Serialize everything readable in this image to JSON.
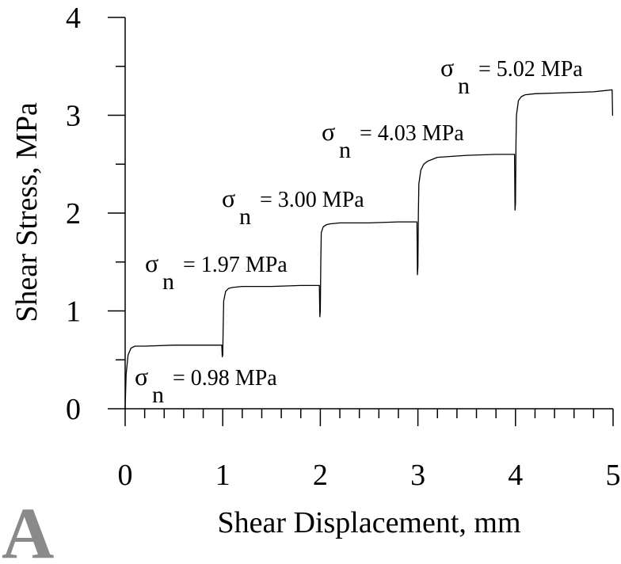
{
  "chart_data": {
    "type": "line",
    "xlabel": "Shear Displacement, mm",
    "ylabel": "Shear Stress, MPa",
    "xlim": [
      0,
      5
    ],
    "ylim": [
      0,
      4
    ],
    "x_ticks": [
      "0",
      "1",
      "2",
      "3",
      "4",
      "5"
    ],
    "y_ticks": [
      "0",
      "1",
      "2",
      "3",
      "4"
    ],
    "grid": false,
    "panel_label": "A",
    "series": [
      {
        "x": [
          0,
          0.01,
          0.03,
          0.06,
          0.1,
          0.2,
          0.5,
          0.8,
          0.99,
          0.995,
          1.0,
          1.005,
          1.01,
          1.03,
          1.06,
          1.1,
          1.2,
          1.5,
          1.8,
          1.99,
          1.995,
          2.0,
          2.005,
          2.01,
          2.03,
          2.06,
          2.1,
          2.2,
          2.5,
          2.8,
          2.99,
          2.995,
          3.0,
          3.005,
          3.01,
          3.03,
          3.06,
          3.1,
          3.2,
          3.5,
          3.8,
          3.99,
          3.995,
          4.0,
          4.005,
          4.01,
          4.03,
          4.06,
          4.1,
          4.2,
          4.5,
          4.8,
          4.99,
          4.995,
          5.0
        ],
        "y": [
          0,
          0.35,
          0.55,
          0.62,
          0.64,
          0.64,
          0.65,
          0.65,
          0.65,
          0.53,
          0.55,
          0.85,
          1.1,
          1.2,
          1.23,
          1.24,
          1.25,
          1.25,
          1.26,
          1.26,
          0.94,
          1.0,
          1.5,
          1.8,
          1.86,
          1.88,
          1.89,
          1.9,
          1.9,
          1.91,
          1.91,
          1.37,
          1.45,
          2.0,
          2.3,
          2.44,
          2.5,
          2.53,
          2.57,
          2.59,
          2.6,
          2.6,
          2.03,
          2.1,
          2.7,
          3.0,
          3.15,
          3.19,
          3.21,
          3.22,
          3.23,
          3.24,
          3.26,
          3.0,
          3.0
        ]
      }
    ],
    "annotations": [
      {
        "symbol": "σ",
        "subscript": "n",
        "text": "= 0.98 MPa"
      },
      {
        "symbol": "σ",
        "subscript": "n",
        "text": "= 1.97 MPa"
      },
      {
        "symbol": "σ",
        "subscript": "n",
        "text": "= 3.00 MPa"
      },
      {
        "symbol": "σ",
        "subscript": "n",
        "text": "= 4.03 MPa"
      },
      {
        "symbol": "σ",
        "subscript": "n",
        "text": "= 5.02 MPa"
      }
    ]
  }
}
